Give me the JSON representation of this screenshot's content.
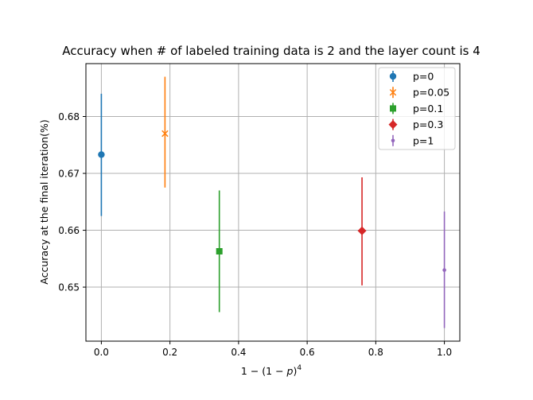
{
  "chart_data": {
    "type": "scatter",
    "title": "Accuracy when # of labeled training data is 2 and the layer count is 4",
    "xlabel_parts": {
      "prefix": "1 − (1 − ",
      "var": "p",
      "suffix": ")",
      "exponent": "4"
    },
    "ylabel": "Accuracy at the final iteration(%)",
    "xlim": [
      -0.045,
      1.045
    ],
    "ylim": [
      0.6405,
      0.6893
    ],
    "xticks": [
      0.0,
      0.2,
      0.4,
      0.6,
      0.8,
      1.0
    ],
    "xtick_labels": [
      "0.0",
      "0.2",
      "0.4",
      "0.6",
      "0.8",
      "1.0"
    ],
    "yticks": [
      0.65,
      0.66,
      0.67,
      0.68
    ],
    "ytick_labels": [
      "0.65",
      "0.66",
      "0.67",
      "0.68"
    ],
    "grid": true,
    "legend_position": "top-right",
    "series": [
      {
        "name": "p=0",
        "x": 0.0,
        "y": 0.6733,
        "yerr_low": 0.6625,
        "yerr_high": 0.684,
        "color": "#1f77b4",
        "marker": "circle"
      },
      {
        "name": "p=0.05",
        "x": 0.1855,
        "y": 0.677,
        "yerr_low": 0.6675,
        "yerr_high": 0.687,
        "color": "#ff7f0e",
        "marker": "x"
      },
      {
        "name": "p=0.1",
        "x": 0.3439,
        "y": 0.6563,
        "yerr_low": 0.6456,
        "yerr_high": 0.667,
        "color": "#2ca02c",
        "marker": "square"
      },
      {
        "name": "p=0.3",
        "x": 0.7599,
        "y": 0.6599,
        "yerr_low": 0.6503,
        "yerr_high": 0.6693,
        "color": "#d62728",
        "marker": "diamond"
      },
      {
        "name": "p=1",
        "x": 1.0,
        "y": 0.653,
        "yerr_low": 0.6428,
        "yerr_high": 0.6633,
        "color": "#9467bd",
        "marker": "small-dot"
      }
    ]
  }
}
